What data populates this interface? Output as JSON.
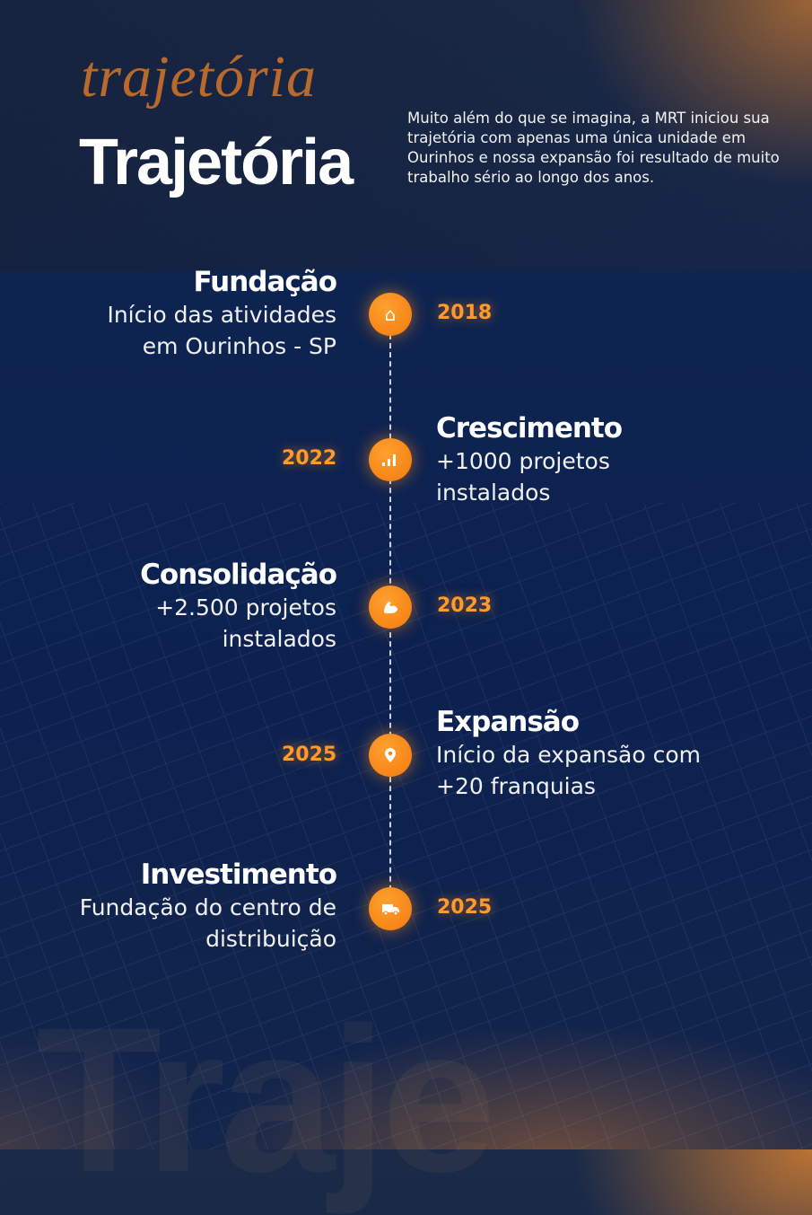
{
  "header": {
    "script_title": "trajetória",
    "title": "Trajetória",
    "intro": "Muito além do que se imagina, a MRT iniciou sua trajetória com apenas uma única unidade em Ourinhos e nossa expansão foi resultado de muito trabalho sério ao longo dos anos."
  },
  "timeline": [
    {
      "title": "Fundação",
      "text": "Início das atividades em Ourinhos - SP",
      "year": "2018",
      "icon": "house-icon"
    },
    {
      "title": "Crescimento",
      "text": "+1000 projetos instalados",
      "year": "2022",
      "icon": "bar-chart-icon"
    },
    {
      "title": "Consolidação",
      "text": "+2.500 projetos instalados",
      "year": "2023",
      "icon": "flexed-arm-icon"
    },
    {
      "title": "Expansão",
      "text": "Início da expansão com +20 franquias",
      "year": "2025",
      "icon": "location-pin-icon"
    },
    {
      "title": "Investimento",
      "text": "Fundação do centro de distribuição",
      "year": "2025",
      "icon": "delivery-truck-icon"
    }
  ],
  "colors": {
    "accent": "#f5850f",
    "background": "#0e2450"
  }
}
